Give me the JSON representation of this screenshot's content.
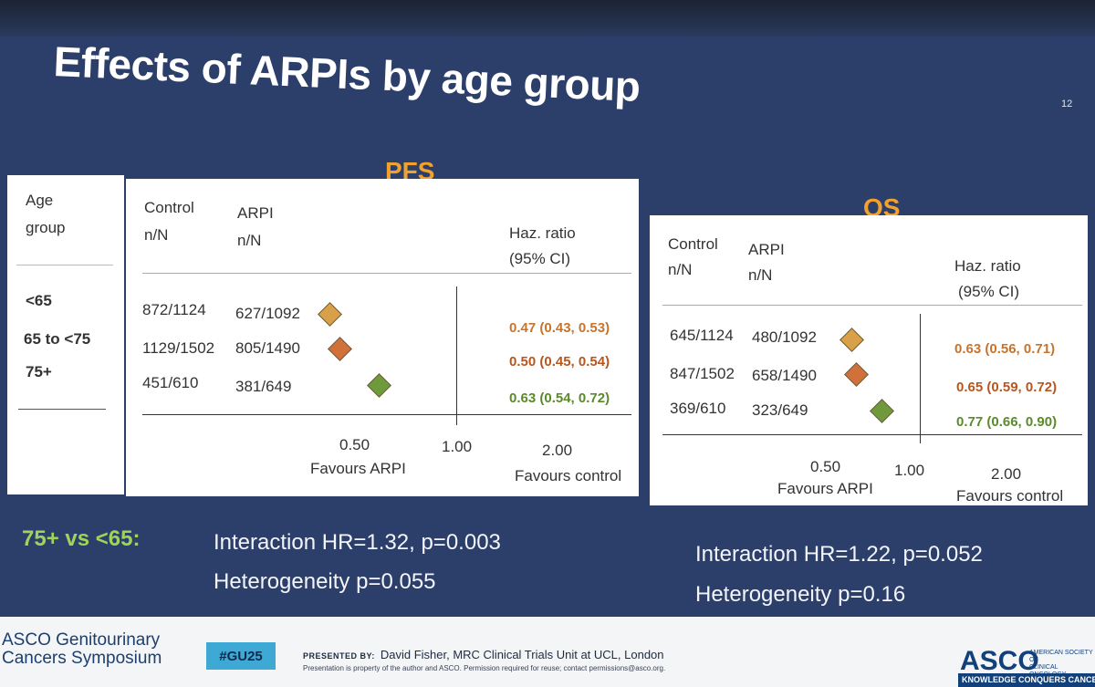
{
  "slide": {
    "title": "Effects of ARPIs by age group",
    "number": "12"
  },
  "age_column": {
    "header_line1": "Age",
    "header_line2": "group",
    "groups": [
      "<65",
      "65 to <75",
      "75+"
    ]
  },
  "colors": {
    "under65": "#d9a04a",
    "65to75": "#d2703a",
    "over75": "#6f9a3c",
    "label_under65": "#c7742d",
    "label_65to75": "#b8561f",
    "label_over75": "#5a8a2c"
  },
  "chart_data": [
    {
      "type": "forest",
      "title": "PFS",
      "col_headers": {
        "control": [
          "Control",
          "n/N"
        ],
        "arpi": [
          "ARPI",
          "n/N"
        ],
        "hr": [
          "Haz. ratio",
          "(95% CI)"
        ]
      },
      "rows": [
        {
          "group": "<65",
          "control": "872/1124",
          "arpi": "627/1092",
          "hr": 0.47,
          "lo": 0.43,
          "hi": 0.53,
          "label": "0.47 (0.43, 0.53)"
        },
        {
          "group": "65 to <75",
          "control": "1129/1502",
          "arpi": "805/1490",
          "hr": 0.5,
          "lo": 0.45,
          "hi": 0.54,
          "label": "0.50 (0.45, 0.54)"
        },
        {
          "group": "75+",
          "control": "451/610",
          "arpi": "381/649",
          "hr": 0.63,
          "lo": 0.54,
          "hi": 0.72,
          "label": "0.63 (0.54, 0.72)"
        }
      ],
      "x_scale": "log",
      "x_ticks": [
        "0.50",
        "1.00",
        "2.00"
      ],
      "x_tick_values": [
        0.5,
        1.0,
        2.0
      ],
      "left_label": "Favours ARPI",
      "right_label": "Favours control"
    },
    {
      "type": "forest",
      "title": "OS",
      "col_headers": {
        "control": [
          "Control",
          "n/N"
        ],
        "arpi": [
          "ARPI",
          "n/N"
        ],
        "hr": [
          "Haz. ratio",
          "(95% CI)"
        ]
      },
      "rows": [
        {
          "group": "<65",
          "control": "645/1124",
          "arpi": "480/1092",
          "hr": 0.63,
          "lo": 0.56,
          "hi": 0.71,
          "label": "0.63 (0.56, 0.71)"
        },
        {
          "group": "65 to <75",
          "control": "847/1502",
          "arpi": "658/1490",
          "hr": 0.65,
          "lo": 0.59,
          "hi": 0.72,
          "label": "0.65 (0.59, 0.72)"
        },
        {
          "group": "75+",
          "control": "369/610",
          "arpi": "323/649",
          "hr": 0.77,
          "lo": 0.66,
          "hi": 0.9,
          "label": "0.77 (0.66, 0.90)"
        }
      ],
      "x_scale": "log",
      "x_ticks": [
        "0.50",
        "1.00",
        "2.00"
      ],
      "x_tick_values": [
        0.5,
        1.0,
        2.0
      ],
      "left_label": "Favours ARPI",
      "right_label": "Favours control"
    }
  ],
  "bottom": {
    "comparison_label": "75+ vs <65:",
    "pfs_interaction": "Interaction HR=1.32, p=0.003",
    "pfs_heterogeneity": "Heterogeneity p=0.055",
    "os_interaction": "Interaction HR=1.22, p=0.052",
    "os_heterogeneity": "Heterogeneity p=0.16"
  },
  "footer": {
    "meeting_line1": "ASCO Genitourinary",
    "meeting_line2": "Cancers Symposium",
    "hashtag": "#GU25",
    "presented_by_label": "PRESENTED BY:",
    "presenter": "David Fisher, MRC Clinical Trials Unit at UCL, London",
    "disclaimer": "Presentation is property of the author and ASCO. Permission required for reuse; contact permissions@asco.org.",
    "logo": "ASCO",
    "society_line1": "AMERICAN SOCIETY OF",
    "society_line2": "CLINICAL ONCOLOGY",
    "tagline": "KNOWLEDGE CONQUERS CANCER"
  }
}
